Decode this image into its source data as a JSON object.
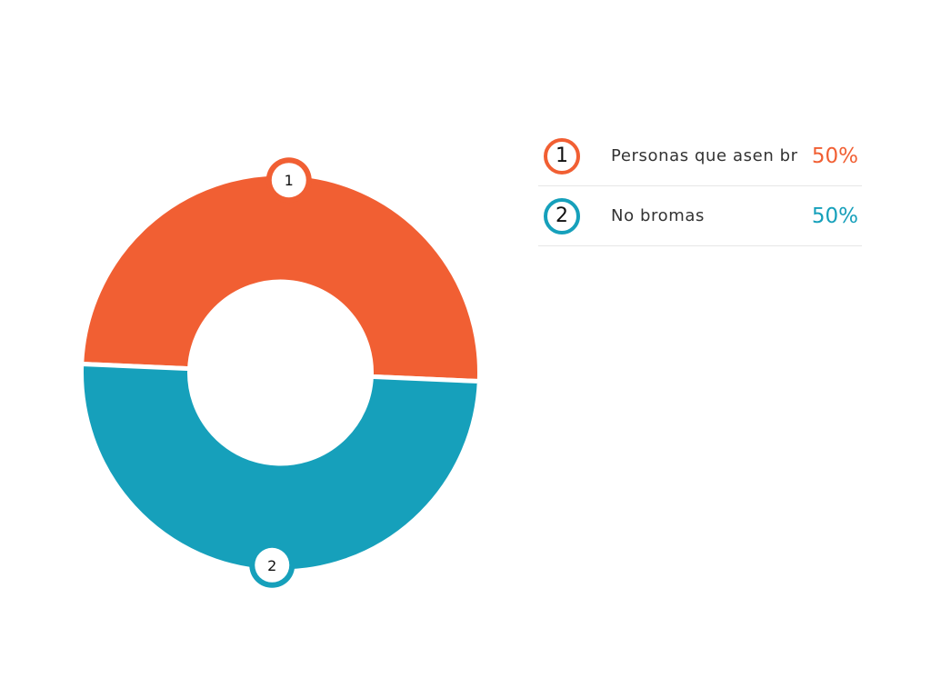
{
  "chart_data": {
    "type": "pie",
    "donut": true,
    "categories": [
      "Personas que asen br",
      "No bromas"
    ],
    "values": [
      50,
      50
    ],
    "percent_labels": [
      "50%",
      "50%"
    ],
    "markers": [
      "1",
      "2"
    ],
    "colors": [
      "#F15F33",
      "#16A0BB"
    ],
    "legend": "right"
  }
}
